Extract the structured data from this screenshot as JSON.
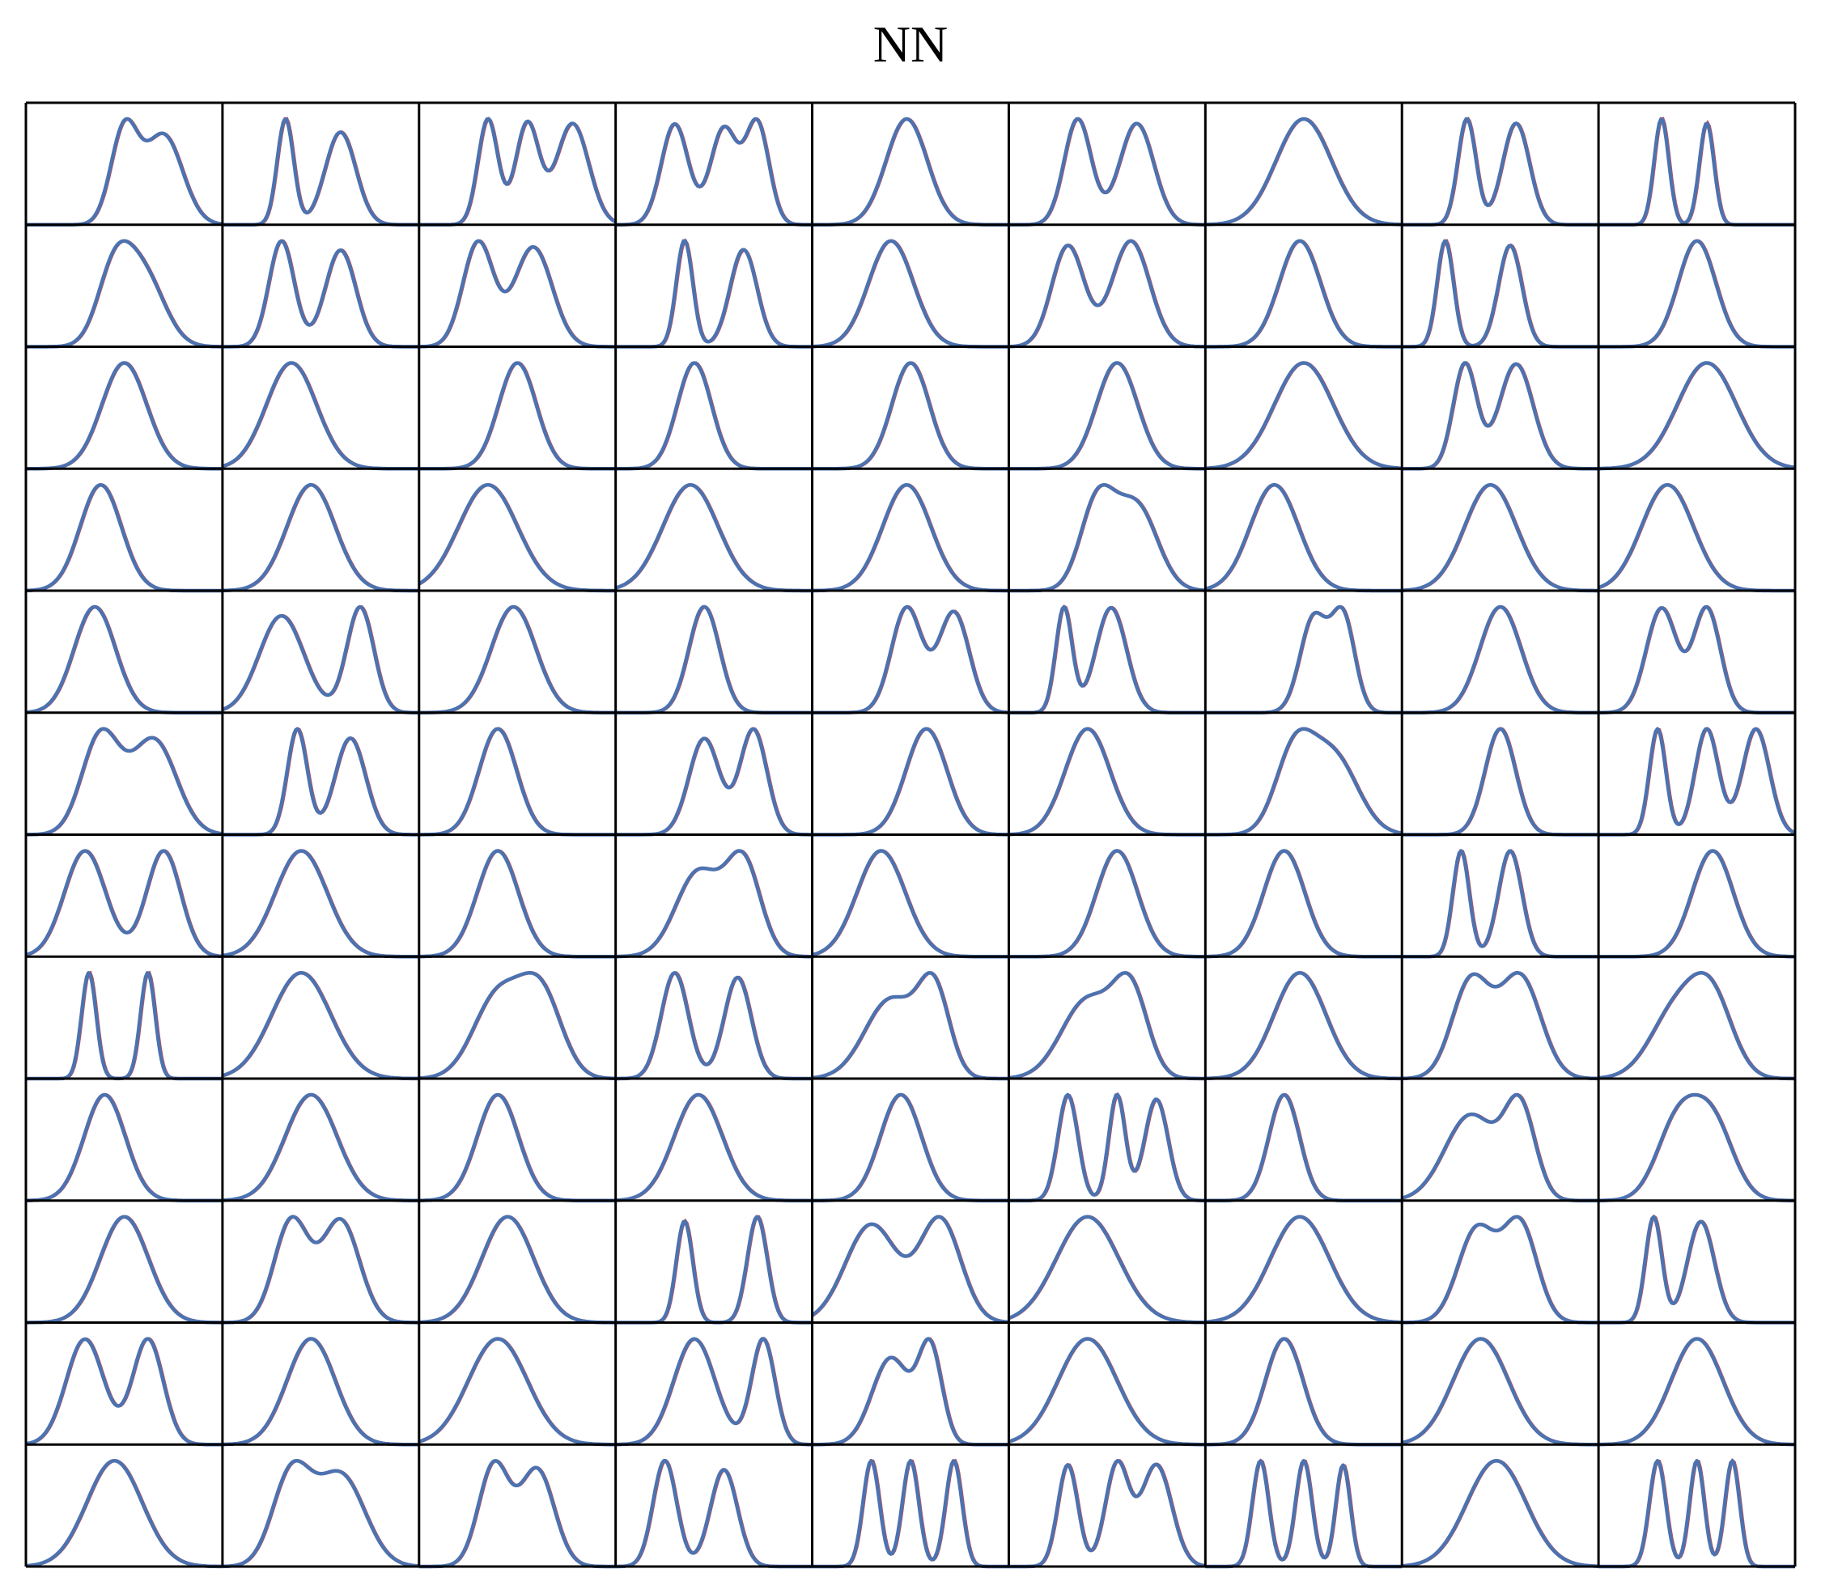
{
  "chart_data": {
    "type": "line",
    "title": "NN",
    "rows": 12,
    "cols": 9,
    "xlabel": "",
    "ylabel": "",
    "colors": {
      "prediction": "#c44e52",
      "target": "#4c72b0",
      "frame": "#000000"
    },
    "panel_x_range": [
      0,
      1
    ],
    "panel_y_range": [
      0,
      1
    ],
    "panels": [
      [
        [
          0.5,
          0.16,
          0.12,
          0.03
        ],
        [
          0.7,
          0.22,
          0.18,
          0.04
        ]
      ],
      [
        [
          0.32,
          0.2,
          0.06,
          0.01
        ],
        [
          0.6,
          0.23,
          0.14,
          0.04
        ]
      ],
      [
        [
          0.35,
          0.16,
          0.08,
          0.01
        ],
        [
          0.55,
          0.2,
          0.1,
          0.02
        ],
        [
          0.78,
          0.26,
          0.15,
          0.02
        ]
      ],
      [
        [
          0.3,
          0.2,
          0.12,
          0.02
        ],
        [
          0.55,
          0.26,
          0.12,
          0.03
        ],
        [
          0.72,
          0.2,
          0.1,
          0.02
        ]
      ],
      [
        [
          0.48,
          0.5,
          0.2,
          0.03
        ]
      ],
      [
        [
          0.35,
          0.24,
          0.12,
          0.01
        ],
        [
          0.65,
          0.4,
          0.16,
          0.02
        ]
      ],
      [
        [
          0.5,
          0.55,
          0.28,
          0.02
        ]
      ],
      [
        [
          0.33,
          0.18,
          0.07,
          0.01
        ],
        [
          0.58,
          0.28,
          0.12,
          0.02
        ]
      ],
      [
        [
          0.32,
          0.25,
          0.05,
          0.01
        ],
        [
          0.55,
          0.18,
          0.05,
          0.02
        ]
      ],
      [
        [
          0.45,
          0.3,
          0.16,
          0.02
        ],
        [
          0.6,
          0.35,
          0.2,
          0.03
        ]
      ],
      [
        [
          0.3,
          0.2,
          0.11,
          0.02
        ],
        [
          0.6,
          0.3,
          0.14,
          0.04
        ]
      ],
      [
        [
          0.3,
          0.24,
          0.14,
          0.03
        ],
        [
          0.58,
          0.32,
          0.18,
          0.04
        ]
      ],
      [
        [
          0.35,
          0.18,
          0.06,
          0.02
        ],
        [
          0.65,
          0.2,
          0.12,
          0.04
        ]
      ],
      [
        [
          0.4,
          0.48,
          0.22,
          0.03
        ]
      ],
      [
        [
          0.3,
          0.22,
          0.15,
          0.04
        ],
        [
          0.62,
          0.3,
          0.18,
          0.03
        ]
      ],
      [
        [
          0.48,
          0.42,
          0.2,
          0.04
        ]
      ],
      [
        [
          0.22,
          0.12,
          0.06,
          0.02
        ],
        [
          0.55,
          0.22,
          0.1,
          0.03
        ]
      ],
      [
        [
          0.5,
          0.5,
          0.18,
          0.02
        ]
      ],
      [
        [
          0.5,
          0.52,
          0.22,
          0.03
        ]
      ],
      [
        [
          0.35,
          0.45,
          0.25,
          0.04
        ]
      ],
      [
        [
          0.5,
          0.48,
          0.18,
          0.02
        ]
      ],
      [
        [
          0.4,
          0.35,
          0.16,
          0.03
        ]
      ],
      [
        [
          0.5,
          0.4,
          0.18,
          0.03
        ]
      ],
      [
        [
          0.55,
          0.45,
          0.2,
          0.02
        ]
      ],
      [
        [
          0.5,
          0.6,
          0.3,
          0.03
        ]
      ],
      [
        [
          0.32,
          0.2,
          0.1,
          0.02
        ],
        [
          0.58,
          0.3,
          0.16,
          0.02
        ]
      ],
      [
        [
          0.55,
          0.55,
          0.3,
          0.03
        ]
      ],
      [
        [
          0.38,
          0.42,
          0.2,
          0.04
        ]
      ],
      [
        [
          0.45,
          0.4,
          0.24,
          0.03
        ]
      ],
      [
        [
          0.35,
          0.45,
          0.3,
          0.04
        ]
      ],
      [
        [
          0.38,
          0.45,
          0.28,
          0.02
        ]
      ],
      [
        [
          0.48,
          0.52,
          0.24,
          0.03
        ]
      ],
      [
        [
          0.45,
          0.38,
          0.16,
          0.02
        ],
        [
          0.65,
          0.35,
          0.2,
          0.03
        ]
      ],
      [
        [
          0.35,
          0.42,
          0.24,
          0.04
        ]
      ],
      [
        [
          0.45,
          0.4,
          0.26,
          0.02
        ]
      ],
      [
        [
          0.35,
          0.4,
          0.26,
          0.04
        ]
      ],
      [
        [
          0.35,
          0.3,
          0.2,
          0.03
        ]
      ],
      [
        [
          0.3,
          0.32,
          0.22,
          0.03
        ],
        [
          0.7,
          0.2,
          0.12,
          0.01
        ]
      ],
      [
        [
          0.48,
          0.52,
          0.22,
          0.03
        ]
      ],
      [
        [
          0.45,
          0.28,
          0.14,
          0.03
        ]
      ],
      [
        [
          0.48,
          0.3,
          0.14,
          0.02
        ],
        [
          0.72,
          0.22,
          0.14,
          0.03
        ]
      ],
      [
        [
          0.28,
          0.18,
          0.06,
          0.02
        ],
        [
          0.52,
          0.24,
          0.14,
          0.02
        ]
      ],
      [
        [
          0.55,
          0.24,
          0.12,
          0.02
        ],
        [
          0.7,
          0.2,
          0.1,
          0.02
        ]
      ],
      [
        [
          0.5,
          0.5,
          0.2,
          0.03
        ]
      ],
      [
        [
          0.32,
          0.2,
          0.14,
          0.02
        ],
        [
          0.55,
          0.24,
          0.12,
          0.02
        ]
      ],
      [
        [
          0.38,
          0.35,
          0.18,
          0.03
        ],
        [
          0.65,
          0.4,
          0.22,
          0.04
        ]
      ],
      [
        [
          0.38,
          0.2,
          0.08,
          0.02
        ],
        [
          0.65,
          0.3,
          0.14,
          0.04
        ]
      ],
      [
        [
          0.4,
          0.28,
          0.18,
          0.04
        ]
      ],
      [
        [
          0.45,
          0.35,
          0.14,
          0.04
        ],
        [
          0.7,
          0.18,
          0.12,
          0.02
        ]
      ],
      [
        [
          0.58,
          0.36,
          0.2,
          0.03
        ]
      ],
      [
        [
          0.4,
          0.4,
          0.22,
          0.03
        ]
      ],
      [
        [
          0.45,
          0.3,
          0.18,
          0.02
        ],
        [
          0.65,
          0.45,
          0.24,
          0.02
        ]
      ],
      [
        [
          0.5,
          0.3,
          0.14,
          0.03
        ]
      ],
      [
        [
          0.3,
          0.18,
          0.06,
          0.02
        ],
        [
          0.55,
          0.24,
          0.1,
          0.02
        ],
        [
          0.8,
          0.28,
          0.12,
          0.02
        ]
      ],
      [
        [
          0.3,
          0.32,
          0.2,
          0.03
        ],
        [
          0.7,
          0.22,
          0.16,
          0.03
        ]
      ],
      [
        [
          0.4,
          0.42,
          0.26,
          0.04
        ]
      ],
      [
        [
          0.4,
          0.32,
          0.2,
          0.03
        ]
      ],
      [
        [
          0.42,
          0.34,
          0.22,
          0.04
        ],
        [
          0.65,
          0.28,
          0.16,
          0.02
        ]
      ],
      [
        [
          0.35,
          0.4,
          0.24,
          0.03
        ]
      ],
      [
        [
          0.55,
          0.3,
          0.2,
          0.04
        ]
      ],
      [
        [
          0.4,
          0.34,
          0.2,
          0.03
        ]
      ],
      [
        [
          0.3,
          0.18,
          0.06,
          0.02
        ],
        [
          0.55,
          0.22,
          0.1,
          0.02
        ]
      ],
      [
        [
          0.58,
          0.42,
          0.2,
          0.03
        ]
      ],
      [
        [
          0.32,
          0.18,
          0.05,
          0.01
        ],
        [
          0.62,
          0.18,
          0.05,
          0.01
        ]
      ],
      [
        [
          0.4,
          0.6,
          0.3,
          0.03
        ]
      ],
      [
        [
          0.4,
          0.4,
          0.24,
          0.04
        ],
        [
          0.62,
          0.3,
          0.2,
          0.04
        ]
      ],
      [
        [
          0.3,
          0.22,
          0.12,
          0.02
        ],
        [
          0.62,
          0.24,
          0.12,
          0.03
        ]
      ],
      [
        [
          0.4,
          0.45,
          0.26,
          0.04
        ],
        [
          0.62,
          0.28,
          0.14,
          0.03
        ]
      ],
      [
        [
          0.4,
          0.45,
          0.26,
          0.04
        ],
        [
          0.62,
          0.3,
          0.16,
          0.03
        ]
      ],
      [
        [
          0.48,
          0.45,
          0.26,
          0.04
        ]
      ],
      [
        [
          0.35,
          0.32,
          0.18,
          0.04
        ],
        [
          0.6,
          0.3,
          0.2,
          0.03
        ]
      ],
      [
        [
          0.4,
          0.42,
          0.26,
          0.03
        ],
        [
          0.58,
          0.32,
          0.2,
          0.03
        ]
      ],
      [
        [
          0.4,
          0.32,
          0.2,
          0.03
        ]
      ],
      [
        [
          0.45,
          0.42,
          0.26,
          0.04
        ]
      ],
      [
        [
          0.4,
          0.35,
          0.2,
          0.04
        ]
      ],
      [
        [
          0.42,
          0.38,
          0.24,
          0.03
        ]
      ],
      [
        [
          0.45,
          0.35,
          0.2,
          0.03
        ]
      ],
      [
        [
          0.3,
          0.2,
          0.08,
          0.01
        ],
        [
          0.55,
          0.18,
          0.06,
          0.01
        ],
        [
          0.75,
          0.22,
          0.1,
          0.02
        ]
      ],
      [
        [
          0.4,
          0.32,
          0.14,
          0.03
        ]
      ],
      [
        [
          0.35,
          0.4,
          0.26,
          0.04
        ],
        [
          0.6,
          0.3,
          0.14,
          0.03
        ]
      ],
      [
        [
          0.4,
          0.3,
          0.2,
          0.04
        ],
        [
          0.58,
          0.34,
          0.2,
          0.04
        ]
      ],
      [
        [
          0.5,
          0.38,
          0.24,
          0.03
        ]
      ],
      [
        [
          0.35,
          0.25,
          0.16,
          0.04
        ],
        [
          0.6,
          0.3,
          0.18,
          0.04
        ]
      ],
      [
        [
          0.45,
          0.55,
          0.26,
          0.03
        ]
      ],
      [
        [
          0.35,
          0.18,
          0.06,
          0.02
        ],
        [
          0.72,
          0.2,
          0.08,
          0.01
        ]
      ],
      [
        [
          0.3,
          0.4,
          0.26,
          0.04
        ],
        [
          0.65,
          0.34,
          0.2,
          0.03
        ]
      ],
      [
        [
          0.4,
          0.55,
          0.32,
          0.04
        ]
      ],
      [
        [
          0.48,
          0.58,
          0.3,
          0.03
        ]
      ],
      [
        [
          0.38,
          0.28,
          0.18,
          0.04
        ],
        [
          0.6,
          0.26,
          0.16,
          0.03
        ]
      ],
      [
        [
          0.28,
          0.18,
          0.06,
          0.02
        ],
        [
          0.52,
          0.3,
          0.12,
          0.03
        ]
      ],
      [
        [
          0.3,
          0.25,
          0.18,
          0.04
        ],
        [
          0.62,
          0.28,
          0.14,
          0.04
        ]
      ],
      [
        [
          0.45,
          0.45,
          0.24,
          0.03
        ]
      ],
      [
        [
          0.4,
          0.48,
          0.3,
          0.04
        ]
      ],
      [
        [
          0.4,
          0.45,
          0.2,
          0.03
        ],
        [
          0.75,
          0.22,
          0.1,
          0.03
        ]
      ],
      [
        [
          0.4,
          0.3,
          0.18,
          0.04
        ],
        [
          0.6,
          0.24,
          0.1,
          0.02
        ]
      ],
      [
        [
          0.4,
          0.55,
          0.3,
          0.03
        ]
      ],
      [
        [
          0.4,
          0.32,
          0.18,
          0.03
        ]
      ],
      [
        [
          0.4,
          0.4,
          0.28,
          0.03
        ]
      ],
      [
        [
          0.5,
          0.5,
          0.26,
          0.03
        ]
      ],
      [
        [
          0.45,
          0.42,
          0.28,
          0.04
        ]
      ],
      [
        [
          0.35,
          0.28,
          0.18,
          0.04
        ],
        [
          0.6,
          0.38,
          0.24,
          0.04
        ]
      ],
      [
        [
          0.38,
          0.25,
          0.14,
          0.03
        ],
        [
          0.6,
          0.28,
          0.16,
          0.04
        ]
      ],
      [
        [
          0.25,
          0.2,
          0.1,
          0.02
        ],
        [
          0.55,
          0.26,
          0.12,
          0.04
        ]
      ],
      [
        [
          0.3,
          0.18,
          0.06,
          0.02
        ],
        [
          0.5,
          0.2,
          0.06,
          0.02
        ],
        [
          0.72,
          0.22,
          0.06,
          0.02
        ]
      ],
      [
        [
          0.3,
          0.18,
          0.08,
          0.02
        ],
        [
          0.55,
          0.22,
          0.1,
          0.02
        ],
        [
          0.75,
          0.3,
          0.14,
          0.02
        ]
      ],
      [
        [
          0.28,
          0.16,
          0.06,
          0.01
        ],
        [
          0.5,
          0.2,
          0.06,
          0.01
        ],
        [
          0.7,
          0.18,
          0.05,
          0.02
        ]
      ],
      [
        [
          0.48,
          0.55,
          0.3,
          0.03
        ]
      ],
      [
        [
          0.3,
          0.18,
          0.06,
          0.02
        ],
        [
          0.5,
          0.18,
          0.05,
          0.02
        ],
        [
          0.68,
          0.18,
          0.05,
          0.02
        ]
      ]
    ]
  }
}
